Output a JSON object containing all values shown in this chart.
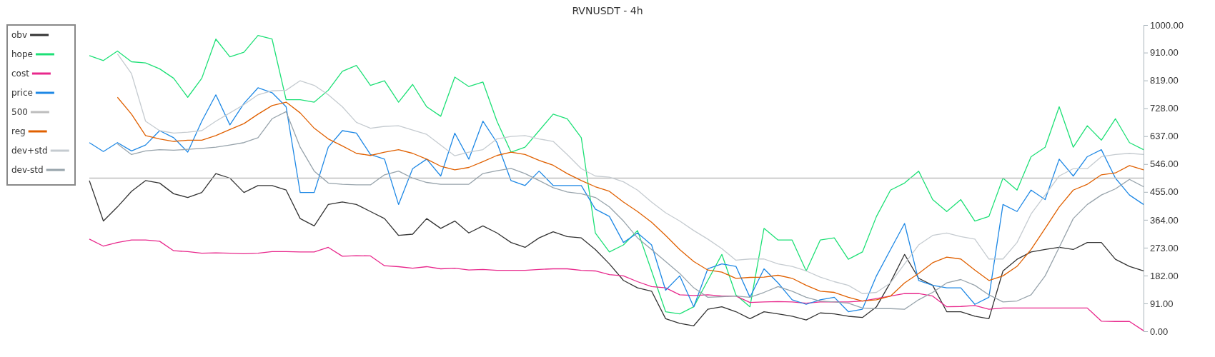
{
  "chart_data": {
    "type": "line",
    "title": "RVNUSDT - 4h",
    "categories": [
      null,
      null,
      null,
      null,
      null,
      null,
      null,
      null,
      null,
      null,
      null,
      null,
      null,
      null,
      null,
      null,
      null,
      null,
      null,
      null,
      null,
      null,
      null,
      null,
      null,
      null,
      null,
      null,
      null,
      null,
      null,
      null,
      null,
      null,
      null,
      null,
      null,
      null,
      null,
      null,
      null,
      null,
      null,
      null,
      null,
      null,
      null,
      null,
      null,
      null,
      null,
      null,
      null,
      null,
      null,
      null,
      null,
      null,
      null,
      null,
      null,
      null,
      null,
      null,
      null,
      null,
      null,
      null,
      null,
      null,
      null,
      null,
      null,
      null,
      null,
      null
    ],
    "ylim": [
      0,
      1000
    ],
    "yticks": [
      {
        "value": 0,
        "label": "0.00"
      },
      {
        "value": 91,
        "label": "91.00"
      },
      {
        "value": 182,
        "label": "182.00"
      },
      {
        "value": 273,
        "label": "273.00"
      },
      {
        "value": 364,
        "label": "364.00"
      },
      {
        "value": 455,
        "label": "455.00"
      },
      {
        "value": 546,
        "label": "546.00"
      },
      {
        "value": 637,
        "label": "637.00"
      },
      {
        "value": 728,
        "label": "728.00"
      },
      {
        "value": 819,
        "label": "819.00"
      },
      {
        "value": 910,
        "label": "910.00"
      },
      {
        "value": 1000,
        "label": "1000.00"
      }
    ],
    "legend": "top left",
    "marker": "none",
    "line_style": "solid",
    "series": [
      {
        "name": "obv",
        "color": "#333333",
        "values": [
          492,
          360,
          406,
          457,
          492,
          484,
          449,
          437,
          453,
          515,
          500,
          453,
          476,
          476,
          461,
          368,
          344,
          414,
          422,
          414,
          391,
          368,
          313,
          317,
          368,
          336,
          360,
          321,
          344,
          321,
          290,
          274,
          305,
          325,
          309,
          305,
          267,
          220,
          166,
          142,
          131,
          41,
          26,
          18,
          72,
          80,
          64,
          41,
          64,
          57,
          49,
          37,
          60,
          57,
          49,
          45,
          80,
          160,
          251,
          173,
          150,
          64,
          64,
          49,
          41,
          197,
          235,
          259,
          267,
          274,
          267,
          290,
          290,
          235,
          212,
          197
        ]
      },
      {
        "name": "hope",
        "color": "#1de076",
        "values": [
          900,
          884,
          915,
          880,
          876,
          857,
          826,
          764,
          826,
          954,
          896,
          911,
          966,
          954,
          756,
          756,
          748,
          787,
          849,
          868,
          803,
          818,
          748,
          806,
          733,
          702,
          830,
          799,
          814,
          686,
          585,
          601,
          655,
          709,
          694,
          632,
          321,
          259,
          282,
          329,
          197,
          64,
          57,
          80,
          166,
          251,
          119,
          80,
          336,
          298,
          298,
          197,
          298,
          305,
          235,
          259,
          375,
          461,
          484,
          523,
          430,
          391,
          430,
          360,
          375,
          500,
          461,
          570,
          601,
          733,
          601,
          671,
          624,
          694,
          616,
          593
        ]
      },
      {
        "name": "cost",
        "color": "#e8288c",
        "values": [
          301,
          278,
          290,
          298,
          298,
          294,
          263,
          260,
          255,
          256,
          255,
          253,
          255,
          260,
          260,
          259,
          259,
          274,
          245,
          247,
          246,
          214,
          211,
          206,
          211,
          204,
          206,
          200,
          202,
          199,
          199,
          199,
          202,
          204,
          204,
          199,
          197,
          185,
          181,
          162,
          146,
          142,
          119,
          117,
          119,
          115,
          115,
          94,
          96,
          97,
          96,
          92,
          96,
          96,
          96,
          99,
          107,
          115,
          123,
          123,
          115,
          80,
          81,
          84,
          72,
          76,
          76,
          76,
          76,
          76,
          76,
          76,
          33,
          32,
          32,
          2
        ]
      },
      {
        "name": "price",
        "color": "#1e88e5",
        "values": [
          616,
          587,
          616,
          589,
          608,
          655,
          632,
          585,
          686,
          772,
          674,
          744,
          795,
          779,
          733,
          453,
          453,
          601,
          655,
          647,
          577,
          562,
          414,
          531,
          562,
          507,
          647,
          562,
          686,
          616,
          492,
          476,
          523,
          476,
          476,
          476,
          399,
          375,
          290,
          321,
          282,
          134,
          181,
          80,
          204,
          220,
          212,
          111,
          204,
          158,
          103,
          88,
          103,
          111,
          64,
          72,
          181,
          267,
          352,
          166,
          150,
          142,
          142,
          88,
          111,
          414,
          391,
          461,
          430,
          562,
          507,
          570,
          593,
          500,
          445,
          414
        ]
      },
      {
        "name": "500",
        "color": "#bdbdbd",
        "values": [
          500,
          500,
          500,
          500,
          500,
          500,
          500,
          500,
          500,
          500,
          500,
          500,
          500,
          500,
          500,
          500,
          500,
          500,
          500,
          500,
          500,
          500,
          500,
          500,
          500,
          500,
          500,
          500,
          500,
          500,
          500,
          500,
          500,
          500,
          500,
          500,
          500,
          500,
          500,
          500,
          500,
          500,
          500,
          500,
          500,
          500,
          500,
          500,
          500,
          500,
          500,
          500,
          500,
          500,
          500,
          500,
          500,
          500,
          500,
          500,
          500,
          500,
          500,
          500,
          500,
          500,
          500,
          500,
          500,
          500,
          500,
          500,
          500,
          500,
          500,
          500
        ]
      },
      {
        "name": "reg",
        "color": "#e06000",
        "values": [
          null,
          null,
          764,
          709,
          639,
          628,
          620,
          624,
          624,
          639,
          659,
          678,
          709,
          737,
          748,
          713,
          663,
          628,
          605,
          581,
          574,
          585,
          593,
          581,
          562,
          539,
          527,
          535,
          554,
          574,
          585,
          577,
          558,
          542,
          515,
          492,
          472,
          457,
          422,
          391,
          356,
          313,
          267,
          228,
          200,
          193,
          173,
          176,
          177,
          183,
          173,
          150,
          131,
          127,
          111,
          99,
          103,
          115,
          158,
          189,
          224,
          242,
          236,
          200,
          166,
          181,
          212,
          267,
          336,
          406,
          461,
          480,
          511,
          517,
          541,
          527
        ]
      },
      {
        "name": "dev+std",
        "color": "#c5cbd0",
        "values": [
          null,
          null,
          906,
          841,
          686,
          655,
          647,
          650,
          655,
          686,
          713,
          740,
          772,
          785,
          787,
          818,
          803,
          772,
          733,
          682,
          663,
          669,
          671,
          657,
          643,
          608,
          573,
          585,
          593,
          628,
          636,
          639,
          628,
          620,
          577,
          531,
          507,
          503,
          488,
          461,
          422,
          387,
          360,
          329,
          301,
          270,
          232,
          236,
          236,
          220,
          212,
          197,
          177,
          162,
          150,
          123,
          127,
          158,
          220,
          282,
          313,
          321,
          309,
          301,
          236,
          236,
          290,
          383,
          445,
          507,
          531,
          531,
          570,
          577,
          581,
          577
        ]
      },
      {
        "name": "dev-std",
        "color": "#97a3ab",
        "values": [
          null,
          null,
          612,
          577,
          589,
          593,
          591,
          594,
          597,
          601,
          608,
          616,
          632,
          694,
          717,
          601,
          523,
          484,
          480,
          478,
          478,
          511,
          523,
          500,
          486,
          480,
          480,
          480,
          515,
          524,
          532,
          515,
          492,
          469,
          455,
          449,
          437,
          406,
          360,
          305,
          267,
          228,
          189,
          142,
          111,
          113,
          115,
          111,
          127,
          146,
          131,
          111,
          99,
          96,
          92,
          76,
          74,
          74,
          72,
          103,
          127,
          158,
          169,
          150,
          119,
          96,
          99,
          119,
          181,
          274,
          368,
          414,
          445,
          465,
          496,
          472
        ]
      }
    ]
  }
}
